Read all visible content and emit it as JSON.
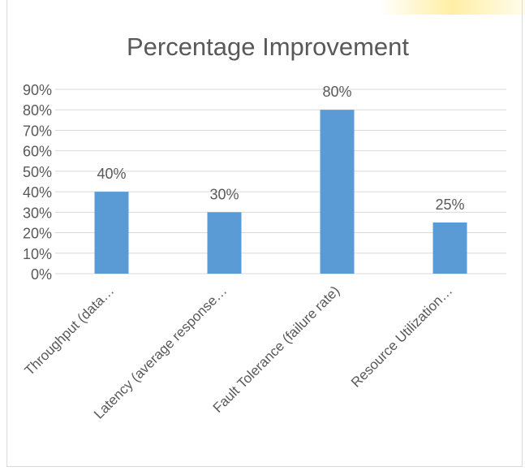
{
  "chart_data": {
    "type": "bar",
    "title": "Percentage Improvement",
    "categories": [
      "Throughput (data…",
      "Latency (average response…",
      "Fault Tolerance (failure rate)",
      "Resource Utilization…"
    ],
    "values": [
      40,
      30,
      80,
      25
    ],
    "data_labels": [
      "40%",
      "30%",
      "80%",
      "25%"
    ],
    "y_ticks": [
      "0%",
      "10%",
      "20%",
      "30%",
      "40%",
      "50%",
      "60%",
      "70%",
      "80%",
      "90%"
    ],
    "ylim": [
      0,
      90
    ],
    "grid": true,
    "legend": "none",
    "colors": {
      "bar": "#5b9bd5",
      "grid": "#d9d9d9",
      "text": "#595959",
      "title": "#595959"
    }
  }
}
